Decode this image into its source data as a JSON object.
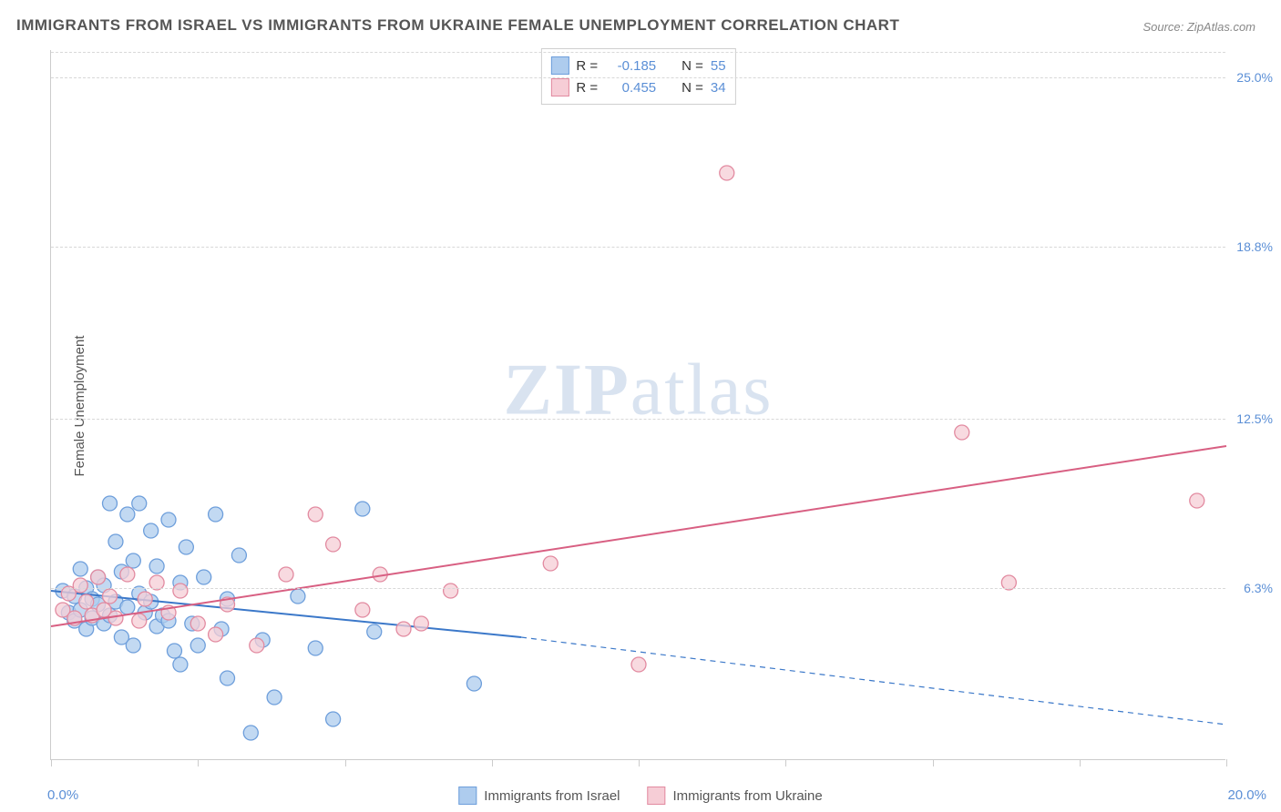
{
  "title": "IMMIGRANTS FROM ISRAEL VS IMMIGRANTS FROM UKRAINE FEMALE UNEMPLOYMENT CORRELATION CHART",
  "source": "Source: ZipAtlas.com",
  "y_axis_label": "Female Unemployment",
  "watermark_bold": "ZIP",
  "watermark_rest": "atlas",
  "chart": {
    "type": "scatter",
    "background_color": "#ffffff",
    "grid_color": "#d8d8d8",
    "text_color": "#555555",
    "value_color": "#5b8fd6",
    "xlim": [
      0.0,
      20.0
    ],
    "ylim": [
      0.0,
      26.0
    ],
    "x_ticks_minor": [
      0,
      2.5,
      5.0,
      7.5,
      10.0,
      12.5,
      15.0,
      17.5,
      20.0
    ],
    "x_tick_labels": {
      "left": "0.0%",
      "right": "20.0%"
    },
    "y_ticks": [
      6.3,
      12.5,
      18.8,
      25.0
    ],
    "y_tick_labels": [
      "6.3%",
      "12.5%",
      "18.8%",
      "25.0%"
    ],
    "marker_radius": 8,
    "marker_stroke_width": 1.3,
    "line_width": 2,
    "series": [
      {
        "name": "Immigrants from Israel",
        "fill": "#aeccee",
        "stroke": "#6d9edb",
        "line_color": "#3b78c9",
        "r": -0.185,
        "n": 55,
        "trend": {
          "x1": 0.0,
          "y1": 6.2,
          "x2": 8.0,
          "y2": 4.5,
          "solid_until_x": 8.0,
          "dash_to_x": 20.0,
          "dash_y": 1.3
        },
        "points": [
          [
            0.2,
            6.2
          ],
          [
            0.3,
            5.4
          ],
          [
            0.4,
            6.0
          ],
          [
            0.4,
            5.1
          ],
          [
            0.5,
            7.0
          ],
          [
            0.5,
            5.5
          ],
          [
            0.6,
            6.3
          ],
          [
            0.6,
            4.8
          ],
          [
            0.7,
            5.9
          ],
          [
            0.7,
            5.2
          ],
          [
            0.8,
            5.7
          ],
          [
            0.8,
            6.7
          ],
          [
            0.9,
            5.0
          ],
          [
            0.9,
            6.4
          ],
          [
            1.0,
            9.4
          ],
          [
            1.0,
            5.3
          ],
          [
            1.1,
            8.0
          ],
          [
            1.1,
            5.8
          ],
          [
            1.2,
            4.5
          ],
          [
            1.2,
            6.9
          ],
          [
            1.3,
            9.0
          ],
          [
            1.3,
            5.6
          ],
          [
            1.4,
            7.3
          ],
          [
            1.4,
            4.2
          ],
          [
            1.5,
            6.1
          ],
          [
            1.5,
            9.4
          ],
          [
            1.6,
            5.4
          ],
          [
            1.7,
            5.8
          ],
          [
            1.7,
            8.4
          ],
          [
            1.8,
            4.9
          ],
          [
            1.8,
            7.1
          ],
          [
            1.9,
            5.3
          ],
          [
            2.0,
            8.8
          ],
          [
            2.0,
            5.1
          ],
          [
            2.1,
            4.0
          ],
          [
            2.2,
            6.5
          ],
          [
            2.2,
            3.5
          ],
          [
            2.3,
            7.8
          ],
          [
            2.4,
            5.0
          ],
          [
            2.5,
            4.2
          ],
          [
            2.6,
            6.7
          ],
          [
            2.8,
            9.0
          ],
          [
            2.9,
            4.8
          ],
          [
            3.0,
            3.0
          ],
          [
            3.0,
            5.9
          ],
          [
            3.2,
            7.5
          ],
          [
            3.4,
            1.0
          ],
          [
            3.6,
            4.4
          ],
          [
            3.8,
            2.3
          ],
          [
            4.2,
            6.0
          ],
          [
            4.5,
            4.1
          ],
          [
            4.8,
            1.5
          ],
          [
            5.3,
            9.2
          ],
          [
            5.5,
            4.7
          ],
          [
            7.2,
            2.8
          ]
        ]
      },
      {
        "name": "Immigrants from Ukraine",
        "fill": "#f6cdd6",
        "stroke": "#e28aa0",
        "line_color": "#d85f82",
        "r": 0.455,
        "n": 34,
        "trend": {
          "x1": 0.0,
          "y1": 4.9,
          "x2": 20.0,
          "y2": 11.5,
          "solid_until_x": 20.0
        },
        "points": [
          [
            0.2,
            5.5
          ],
          [
            0.3,
            6.1
          ],
          [
            0.4,
            5.2
          ],
          [
            0.5,
            6.4
          ],
          [
            0.6,
            5.8
          ],
          [
            0.7,
            5.3
          ],
          [
            0.8,
            6.7
          ],
          [
            0.9,
            5.5
          ],
          [
            1.0,
            6.0
          ],
          [
            1.1,
            5.2
          ],
          [
            1.3,
            6.8
          ],
          [
            1.5,
            5.1
          ],
          [
            1.6,
            5.9
          ],
          [
            1.8,
            6.5
          ],
          [
            2.0,
            5.4
          ],
          [
            2.2,
            6.2
          ],
          [
            2.5,
            5.0
          ],
          [
            2.8,
            4.6
          ],
          [
            3.0,
            5.7
          ],
          [
            3.5,
            4.2
          ],
          [
            4.0,
            6.8
          ],
          [
            4.5,
            9.0
          ],
          [
            4.8,
            7.9
          ],
          [
            5.3,
            5.5
          ],
          [
            5.6,
            6.8
          ],
          [
            6.0,
            4.8
          ],
          [
            6.3,
            5.0
          ],
          [
            6.8,
            6.2
          ],
          [
            8.5,
            7.2
          ],
          [
            10.0,
            3.5
          ],
          [
            11.5,
            21.5
          ],
          [
            15.5,
            12.0
          ],
          [
            16.3,
            6.5
          ],
          [
            19.5,
            9.5
          ]
        ]
      }
    ]
  },
  "legend_top": {
    "r_label": "R =",
    "n_label": "N ="
  }
}
